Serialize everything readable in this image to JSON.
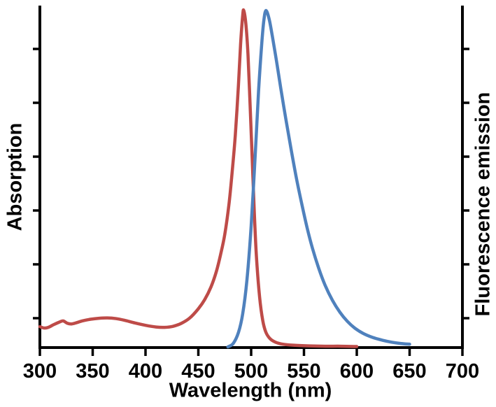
{
  "chart_data": {
    "type": "line",
    "title": "",
    "xlabel": "Wavelength (nm)",
    "ylabel_left": "Absorption",
    "ylabel_right": "Fluorescence emission",
    "xlim": [
      300,
      700
    ],
    "ylim": [
      0,
      1
    ],
    "x_ticks": [
      300,
      350,
      400,
      450,
      500,
      550,
      600,
      650,
      700
    ],
    "y_ticks_labeled": false,
    "grid": false,
    "legend": "none",
    "axis_color": "#000000",
    "series": [
      {
        "name": "Absorption",
        "color": "#be4b48",
        "points": [
          [
            300,
            0.062
          ],
          [
            304,
            0.058
          ],
          [
            308,
            0.06
          ],
          [
            313,
            0.068
          ],
          [
            318,
            0.075
          ],
          [
            322,
            0.079
          ],
          [
            326,
            0.072
          ],
          [
            330,
            0.07
          ],
          [
            335,
            0.074
          ],
          [
            340,
            0.079
          ],
          [
            348,
            0.084
          ],
          [
            356,
            0.087
          ],
          [
            364,
            0.088
          ],
          [
            372,
            0.086
          ],
          [
            380,
            0.081
          ],
          [
            390,
            0.073
          ],
          [
            400,
            0.066
          ],
          [
            410,
            0.061
          ],
          [
            418,
            0.06
          ],
          [
            426,
            0.063
          ],
          [
            434,
            0.072
          ],
          [
            442,
            0.088
          ],
          [
            450,
            0.115
          ],
          [
            456,
            0.142
          ],
          [
            462,
            0.18
          ],
          [
            467,
            0.225
          ],
          [
            471,
            0.275
          ],
          [
            475,
            0.335
          ],
          [
            479,
            0.425
          ],
          [
            482,
            0.52
          ],
          [
            485,
            0.63
          ],
          [
            488,
            0.78
          ],
          [
            490,
            0.9
          ],
          [
            492,
            0.985
          ],
          [
            493,
            1.0
          ],
          [
            495,
            0.96
          ],
          [
            497,
            0.87
          ],
          [
            499,
            0.72
          ],
          [
            501,
            0.56
          ],
          [
            503,
            0.4
          ],
          [
            505,
            0.27
          ],
          [
            508,
            0.15
          ],
          [
            511,
            0.08
          ],
          [
            514,
            0.045
          ],
          [
            518,
            0.026
          ],
          [
            523,
            0.016
          ],
          [
            530,
            0.01
          ],
          [
            540,
            0.007
          ],
          [
            555,
            0.005
          ],
          [
            570,
            0.004
          ],
          [
            585,
            0.004
          ],
          [
            600,
            0.003
          ]
        ]
      },
      {
        "name": "Fluorescence emission",
        "color": "#4f81bd",
        "points": [
          [
            478,
            0.002
          ],
          [
            483,
            0.012
          ],
          [
            488,
            0.045
          ],
          [
            492,
            0.1
          ],
          [
            496,
            0.2
          ],
          [
            500,
            0.36
          ],
          [
            504,
            0.58
          ],
          [
            507,
            0.76
          ],
          [
            510,
            0.9
          ],
          [
            512,
            0.97
          ],
          [
            514,
            1.0
          ],
          [
            517,
            0.975
          ],
          [
            520,
            0.925
          ],
          [
            524,
            0.85
          ],
          [
            528,
            0.77
          ],
          [
            533,
            0.675
          ],
          [
            538,
            0.585
          ],
          [
            543,
            0.5
          ],
          [
            548,
            0.425
          ],
          [
            553,
            0.355
          ],
          [
            558,
            0.295
          ],
          [
            564,
            0.235
          ],
          [
            570,
            0.185
          ],
          [
            577,
            0.14
          ],
          [
            584,
            0.105
          ],
          [
            591,
            0.078
          ],
          [
            598,
            0.058
          ],
          [
            606,
            0.042
          ],
          [
            615,
            0.03
          ],
          [
            624,
            0.022
          ],
          [
            633,
            0.016
          ],
          [
            642,
            0.012
          ],
          [
            650,
            0.01
          ]
        ]
      }
    ]
  }
}
